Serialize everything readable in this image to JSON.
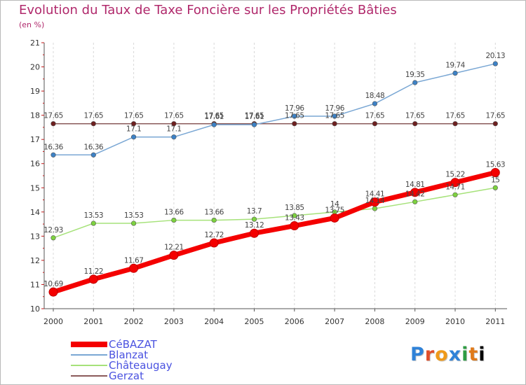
{
  "chart_data": {
    "type": "line",
    "title": "Evolution du Taux de Taxe Foncière sur les Propriétés Bâties",
    "subtitle": "(en %)",
    "xlabel": "",
    "ylabel": "",
    "x": [
      "2000",
      "2001",
      "2002",
      "2003",
      "2004",
      "2005",
      "2006",
      "2007",
      "2008",
      "2009",
      "2010",
      "2011"
    ],
    "y_ticks": [
      "10",
      "11",
      "12",
      "13",
      "14",
      "15",
      "16",
      "17",
      "18",
      "19",
      "20",
      "21"
    ],
    "ylim": [
      10,
      21
    ],
    "grid": "vertical dashed",
    "series": [
      {
        "name": "CéBAZAT",
        "color": "#f40000",
        "values": [
          10.69,
          11.22,
          11.67,
          12.21,
          12.72,
          13.12,
          13.43,
          13.75,
          14.41,
          14.81,
          15.22,
          15.63
        ],
        "labels": [
          "10.69",
          "11.22",
          "11.67",
          "12.21",
          "12.72",
          "13.12",
          "13.43",
          "13.75",
          "14.41",
          "14.81",
          "15.22",
          "15.63"
        ]
      },
      {
        "name": "Blanzat",
        "color": "#7aa7d4",
        "values": [
          16.36,
          16.36,
          17.1,
          17.1,
          17.61,
          17.61,
          17.96,
          17.96,
          18.48,
          19.35,
          19.74,
          20.13
        ],
        "labels": [
          "16.36",
          "16.36",
          "17.1",
          "17.1",
          "17.61",
          "17.61",
          "17.96",
          "17.96",
          "18.48",
          "19.35",
          "19.74",
          "20.13"
        ]
      },
      {
        "name": "Châteaugay",
        "color": "#a6e27a",
        "values": [
          12.93,
          13.53,
          13.53,
          13.66,
          13.66,
          13.7,
          13.85,
          14,
          14.14,
          14.42,
          14.71,
          15
        ],
        "labels": [
          "12.93",
          "13.53",
          "13.53",
          "13.66",
          "13.66",
          "13.7",
          "13.85",
          "14",
          "14.14",
          "14.42",
          "14.71",
          "15"
        ]
      },
      {
        "name": "Gerzat",
        "color": "#8b5a5a",
        "values": [
          17.65,
          17.65,
          17.65,
          17.65,
          17.65,
          17.65,
          17.65,
          17.65,
          17.65,
          17.65,
          17.65,
          17.65
        ],
        "labels": [
          "17.65",
          "17.65",
          "17.65",
          "17.65",
          "17.65",
          "17.65",
          "17.65",
          "17.65",
          "17.65",
          "17.65",
          "17.65",
          "17.65"
        ]
      }
    ],
    "legend_position": "bottom-left"
  },
  "logo_text": "Proxiti"
}
